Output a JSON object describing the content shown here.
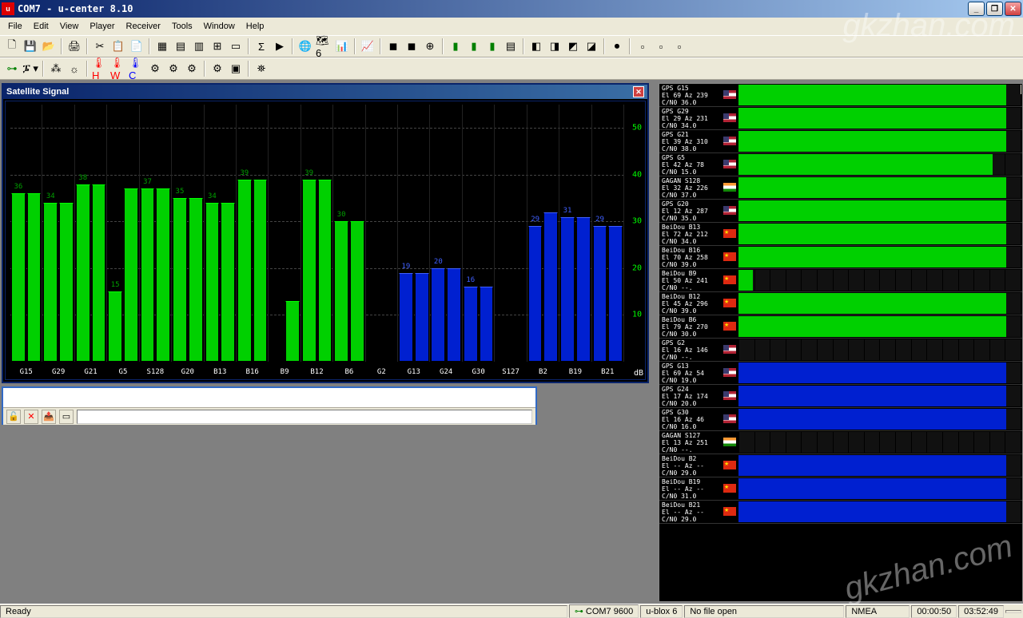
{
  "window": {
    "title": "COM7 - u-center 8.10"
  },
  "menu": [
    "File",
    "Edit",
    "View",
    "Player",
    "Receiver",
    "Tools",
    "Window",
    "Help"
  ],
  "satchart": {
    "title": "Satellite Signal",
    "ymax": 55,
    "yticks": [
      10,
      20,
      30,
      40,
      50
    ],
    "bars": [
      {
        "id": "G15",
        "v1": 36,
        "v2": 36,
        "color": "green"
      },
      {
        "id": "G29",
        "v1": 34,
        "v2": 34,
        "color": "green"
      },
      {
        "id": "G21",
        "v1": 38,
        "v2": 38,
        "color": "green"
      },
      {
        "id": "G5",
        "v1": 15,
        "v2": 37,
        "color": "green"
      },
      {
        "id": "S128",
        "v1": 37,
        "v2": 37,
        "color": "green"
      },
      {
        "id": "G20",
        "v1": 35,
        "v2": 35,
        "color": "green"
      },
      {
        "id": "B13",
        "v1": 34,
        "v2": 34,
        "color": "green"
      },
      {
        "id": "B16",
        "v1": 39,
        "v2": 39,
        "color": "green"
      },
      {
        "id": "B9",
        "v1": 0,
        "v2": 13,
        "color": "green"
      },
      {
        "id": "B12",
        "v1": 39,
        "v2": 39,
        "color": "green"
      },
      {
        "id": "B6",
        "v1": 30,
        "v2": 30,
        "color": "green"
      },
      {
        "id": "G2",
        "v1": 0,
        "v2": 0,
        "color": "black"
      },
      {
        "id": "G13",
        "v1": 19,
        "v2": 19,
        "color": "blue"
      },
      {
        "id": "G24",
        "v1": 20,
        "v2": 20,
        "color": "blue"
      },
      {
        "id": "G30",
        "v1": 16,
        "v2": 16,
        "color": "blue"
      },
      {
        "id": "S127",
        "v1": 0,
        "v2": 0,
        "color": "black"
      },
      {
        "id": "B2",
        "v1": 29,
        "v2": 32,
        "color": "blue"
      },
      {
        "id": "B19",
        "v1": 31,
        "v2": 31,
        "color": "blue"
      },
      {
        "id": "B21",
        "v1": 29,
        "v2": 29,
        "color": "blue"
      }
    ]
  },
  "rpanel": {
    "rows": [
      {
        "name": "GPS G15",
        "l2": "El 69 Az 239",
        "l3": "C/N0 36.0",
        "flag": "us",
        "fill": 95,
        "color": "g"
      },
      {
        "name": "GPS G29",
        "l2": "El 29 Az 231",
        "l3": "C/N0 34.0",
        "flag": "us",
        "fill": 95,
        "color": "g"
      },
      {
        "name": "GPS G21",
        "l2": "El 39 Az 310",
        "l3": "C/N0 38.0",
        "flag": "us",
        "fill": 95,
        "color": "g"
      },
      {
        "name": "GPS G5",
        "l2": "El 42 Az 78",
        "l3": "C/N0 15.0",
        "flag": "us",
        "fill": 90,
        "color": "g"
      },
      {
        "name": "GAGAN S128",
        "l2": "El 32 Az 226",
        "l3": "C/N0 37.0",
        "flag": "in",
        "fill": 95,
        "color": "g"
      },
      {
        "name": "GPS G20",
        "l2": "El 12 Az 287",
        "l3": "C/N0 35.0",
        "flag": "us",
        "fill": 95,
        "color": "g"
      },
      {
        "name": "BeiDou B13",
        "l2": "El 72 Az 212",
        "l3": "C/N0 34.0",
        "flag": "cn",
        "fill": 95,
        "color": "g"
      },
      {
        "name": "BeiDou B16",
        "l2": "El 70 Az 258",
        "l3": "C/N0 39.0",
        "flag": "cn",
        "fill": 95,
        "color": "g"
      },
      {
        "name": "BeiDou B9",
        "l2": "El 50 Az 241",
        "l3": "C/N0 --.",
        "flag": "cn",
        "fill": 5,
        "color": "g"
      },
      {
        "name": "BeiDou B12",
        "l2": "El 45 Az 296",
        "l3": "C/N0 39.0",
        "flag": "cn",
        "fill": 95,
        "color": "g"
      },
      {
        "name": "BeiDou B6",
        "l2": "El 79 Az 270",
        "l3": "C/N0 30.0",
        "flag": "cn",
        "fill": 95,
        "color": "g"
      },
      {
        "name": "GPS G2",
        "l2": "El 16 Az 146",
        "l3": "C/N0 --.",
        "flag": "us",
        "fill": 0,
        "color": "b"
      },
      {
        "name": "GPS G13",
        "l2": "El 69 Az 54",
        "l3": "C/N0 19.0",
        "flag": "us",
        "fill": 95,
        "color": "b"
      },
      {
        "name": "GPS G24",
        "l2": "El 17 Az 174",
        "l3": "C/N0 20.0",
        "flag": "us",
        "fill": 95,
        "color": "b"
      },
      {
        "name": "GPS G30",
        "l2": "El 16 Az 46",
        "l3": "C/N0 16.0",
        "flag": "us",
        "fill": 95,
        "color": "b"
      },
      {
        "name": "GAGAN S127",
        "l2": "El 13 Az 251",
        "l3": "C/N0 --.",
        "flag": "in",
        "fill": 0,
        "color": "b"
      },
      {
        "name": "BeiDou B2",
        "l2": "El -- Az --",
        "l3": "C/N0 29.0",
        "flag": "cn",
        "fill": 95,
        "color": "b"
      },
      {
        "name": "BeiDou B19",
        "l2": "El -- Az --",
        "l3": "C/N0 31.0",
        "flag": "cn",
        "fill": 95,
        "color": "b"
      },
      {
        "name": "BeiDou B21",
        "l2": "El -- Az --",
        "l3": "C/N0 29.0",
        "flag": "cn",
        "fill": 95,
        "color": "b"
      }
    ]
  },
  "status": {
    "ready": "Ready",
    "port": "COM7 9600",
    "chip": "u-blox 6",
    "file": "No file open",
    "mode": "NMEA",
    "t1": "00:00:50",
    "t2": "03:52:49"
  },
  "watermark": "gkzhan.com"
}
